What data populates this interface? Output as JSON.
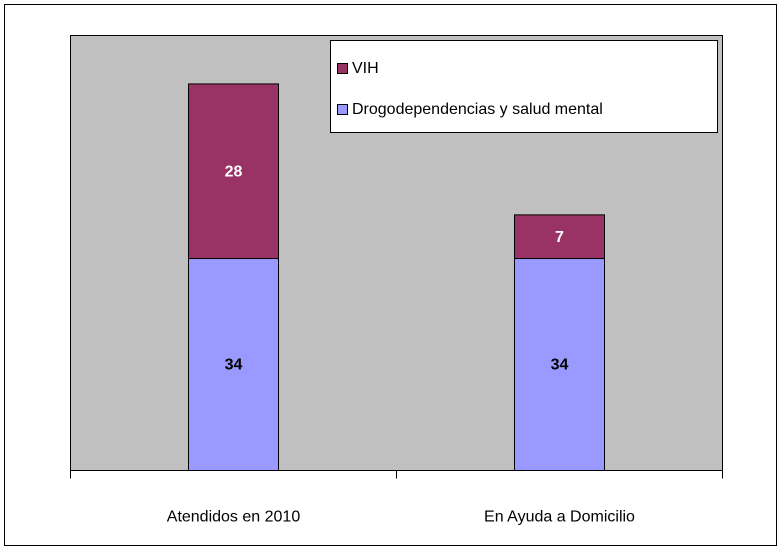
{
  "chart_data": {
    "type": "stacked_bar",
    "categories": [
      "Atendidos en 2010",
      "En Ayuda a Domicilio"
    ],
    "series": [
      {
        "name": "Drogodependencias y salud mental",
        "color": "#9999ff",
        "label_color": "#000000",
        "values": [
          34,
          34
        ]
      },
      {
        "name": "VIH",
        "color": "#993366",
        "label_color": "#ffffff",
        "values": [
          28,
          7
        ]
      }
    ],
    "legend": "top-right",
    "plot_background": "#c0c0c0"
  }
}
